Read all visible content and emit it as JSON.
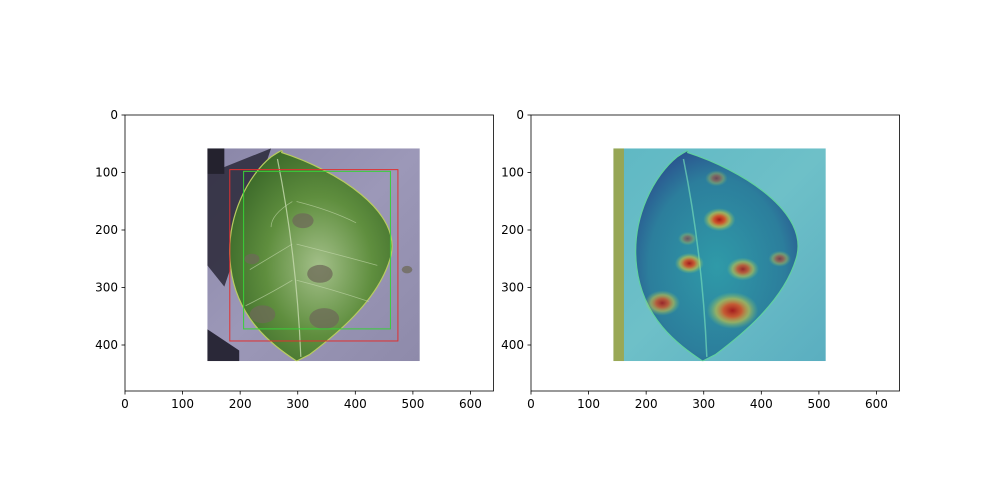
{
  "chart_data": [
    {
      "type": "image",
      "title": "",
      "xlabel": "",
      "ylabel": "",
      "xlim": [
        0,
        640
      ],
      "ylim": [
        480,
        0
      ],
      "xticks": [
        "0",
        "100",
        "200",
        "300",
        "400",
        "500",
        "600"
      ],
      "yticks": [
        "0",
        "100",
        "200",
        "300",
        "400"
      ],
      "image_extent": {
        "x": [
          143,
          512
        ],
        "y": [
          58,
          428
        ]
      },
      "boxes": [
        {
          "color": "#e03030",
          "x": [
            182,
            474
          ],
          "y": [
            95,
            393
          ]
        },
        {
          "color": "#38d038",
          "x": [
            206,
            461
          ],
          "y": [
            98,
            372
          ]
        }
      ]
    },
    {
      "type": "image",
      "title": "",
      "xlabel": "",
      "ylabel": "",
      "xlim": [
        0,
        640
      ],
      "ylim": [
        480,
        0
      ],
      "xticks": [
        "0",
        "100",
        "200",
        "300",
        "400",
        "500",
        "600"
      ],
      "yticks": [
        "0",
        "100",
        "200",
        "300",
        "400"
      ],
      "image_extent": {
        "x": [
          143,
          512
        ],
        "y": [
          58,
          428
        ]
      },
      "hotspots": [
        {
          "x": 327,
          "y": 182,
          "r": 20,
          "strength": 1.0
        },
        {
          "x": 275,
          "y": 258,
          "r": 18,
          "strength": 0.95
        },
        {
          "x": 368,
          "y": 268,
          "r": 20,
          "strength": 0.85
        },
        {
          "x": 228,
          "y": 327,
          "r": 22,
          "strength": 0.85
        },
        {
          "x": 350,
          "y": 340,
          "r": 32,
          "strength": 0.95
        },
        {
          "x": 432,
          "y": 250,
          "r": 14,
          "strength": 0.6
        },
        {
          "x": 322,
          "y": 110,
          "r": 14,
          "strength": 0.5
        },
        {
          "x": 272,
          "y": 215,
          "r": 12,
          "strength": 0.45
        }
      ]
    }
  ]
}
